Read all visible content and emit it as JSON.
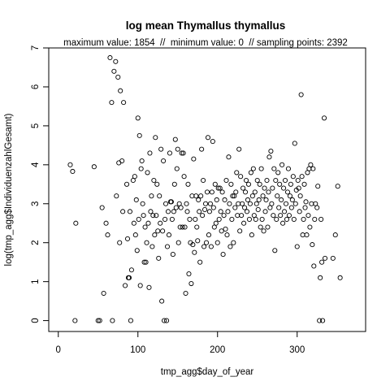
{
  "chart_data": {
    "type": "scatter",
    "title": "log mean Thymallus thymallus",
    "subtitle": "maximum value: 1854  //  minimum value: 0  // sampling points: 2392",
    "xlabel": "tmp_agg$day_of_year",
    "ylabel": "log(tmp_agg$IndividuenzahlGesamt)",
    "xlim": [
      -12,
      386
    ],
    "ylim": [
      -0.28,
      7.0
    ],
    "xticks": [
      0,
      100,
      200,
      300
    ],
    "yticks": [
      0,
      1,
      2,
      3,
      4,
      5,
      6,
      7
    ],
    "grid": false,
    "marker": "open-circle",
    "points": [
      [
        15,
        4.0
      ],
      [
        18,
        3.83
      ],
      [
        21,
        0.0
      ],
      [
        22,
        2.5
      ],
      [
        45,
        3.95
      ],
      [
        50,
        0.0
      ],
      [
        52,
        0.0
      ],
      [
        55,
        2.9
      ],
      [
        57,
        0.7
      ],
      [
        60,
        2.5
      ],
      [
        62,
        2.2
      ],
      [
        65,
        6.75
      ],
      [
        67,
        5.6
      ],
      [
        68,
        0.0
      ],
      [
        70,
        6.4
      ],
      [
        72,
        6.65
      ],
      [
        73,
        3.2
      ],
      [
        75,
        6.25
      ],
      [
        76,
        4.05
      ],
      [
        77,
        2.0
      ],
      [
        78,
        5.9
      ],
      [
        80,
        4.1
      ],
      [
        81,
        2.8
      ],
      [
        82,
        5.6
      ],
      [
        84,
        0.9
      ],
      [
        86,
        3.5
      ],
      [
        87,
        2.1
      ],
      [
        88,
        1.1
      ],
      [
        89,
        1.1
      ],
      [
        90,
        2.8
      ],
      [
        91,
        0.0
      ],
      [
        92,
        1.3
      ],
      [
        94,
        3.6
      ],
      [
        95,
        2.5
      ],
      [
        96,
        3.7
      ],
      [
        97,
        2.2
      ],
      [
        98,
        3.1
      ],
      [
        99,
        1.8
      ],
      [
        100,
        5.2
      ],
      [
        101,
        2.6
      ],
      [
        102,
        4.75
      ],
      [
        103,
        0.9
      ],
      [
        104,
        3.9
      ],
      [
        105,
        4.1
      ],
      [
        106,
        3.0
      ],
      [
        107,
        2.7
      ],
      [
        108,
        1.5
      ],
      [
        109,
        2.4
      ],
      [
        110,
        1.5
      ],
      [
        111,
        2.0
      ],
      [
        112,
        3.8
      ],
      [
        113,
        2.5
      ],
      [
        114,
        0.85
      ],
      [
        115,
        4.3
      ],
      [
        116,
        2.8
      ],
      [
        117,
        3.2
      ],
      [
        118,
        1.9
      ],
      [
        119,
        2.7
      ],
      [
        120,
        3.6
      ],
      [
        121,
        2.2
      ],
      [
        122,
        4.7
      ],
      [
        123,
        2.7
      ],
      [
        124,
        3.5
      ],
      [
        125,
        2.3
      ],
      [
        126,
        1.6
      ],
      [
        127,
        3.2
      ],
      [
        128,
        2.5
      ],
      [
        129,
        4.4
      ],
      [
        130,
        0.5
      ],
      [
        131,
        2.3
      ],
      [
        132,
        4.1
      ],
      [
        133,
        0.0
      ],
      [
        134,
        2.6
      ],
      [
        135,
        3.0
      ],
      [
        136,
        0.0
      ],
      [
        137,
        1.9
      ],
      [
        138,
        2.8
      ],
      [
        139,
        2.2
      ],
      [
        140,
        4.3
      ],
      [
        141,
        3.05
      ],
      [
        142,
        3.05
      ],
      [
        143,
        2.6
      ],
      [
        144,
        1.7
      ],
      [
        145,
        2.8
      ],
      [
        146,
        3.5
      ],
      [
        147,
        4.65
      ],
      [
        148,
        2.9
      ],
      [
        149,
        3.9
      ],
      [
        150,
        4.4
      ],
      [
        151,
        2.0
      ],
      [
        152,
        3.0
      ],
      [
        153,
        2.4
      ],
      [
        154,
        2.9
      ],
      [
        155,
        4.3
      ],
      [
        156,
        2.4
      ],
      [
        157,
        4.3
      ],
      [
        158,
        3.7
      ],
      [
        159,
        2.4
      ],
      [
        160,
        0.7
      ],
      [
        161,
        3.0
      ],
      [
        162,
        2.8
      ],
      [
        163,
        3.5
      ],
      [
        164,
        1.2
      ],
      [
        165,
        2.6
      ],
      [
        166,
        2.0
      ],
      [
        167,
        0.95
      ],
      [
        168,
        3.2
      ],
      [
        169,
        1.95
      ],
      [
        170,
        4.15
      ],
      [
        171,
        1.75
      ],
      [
        172,
        2.6
      ],
      [
        173,
        3.2
      ],
      [
        174,
        2.4
      ],
      [
        175,
        2.05
      ],
      [
        176,
        3.1
      ],
      [
        177,
        2.8
      ],
      [
        178,
        1.5
      ],
      [
        179,
        3.2
      ],
      [
        180,
        4.4
      ],
      [
        181,
        2.7
      ],
      [
        182,
        3.6
      ],
      [
        183,
        1.9
      ],
      [
        184,
        2.85
      ],
      [
        185,
        3.0
      ],
      [
        186,
        2.0
      ],
      [
        187,
        3.3
      ],
      [
        188,
        4.7
      ],
      [
        189,
        2.2
      ],
      [
        190,
        2.8
      ],
      [
        191,
        3.0
      ],
      [
        192,
        1.9
      ],
      [
        193,
        3.3
      ],
      [
        194,
        4.6
      ],
      [
        195,
        2.9
      ],
      [
        196,
        2.4
      ],
      [
        197,
        3.5
      ],
      [
        198,
        2.5
      ],
      [
        199,
        3.1
      ],
      [
        200,
        2.0
      ],
      [
        201,
        3.4
      ],
      [
        202,
        2.6
      ],
      [
        203,
        3.4
      ],
      [
        204,
        2.8
      ],
      [
        205,
        2.3
      ],
      [
        206,
        3.3
      ],
      [
        207,
        1.7
      ],
      [
        208,
        2.7
      ],
      [
        209,
        3.1
      ],
      [
        210,
        2.35
      ],
      [
        211,
        3.6
      ],
      [
        212,
        2.2
      ],
      [
        213,
        2.8
      ],
      [
        214,
        4.2
      ],
      [
        215,
        3.0
      ],
      [
        216,
        1.9
      ],
      [
        217,
        3.5
      ],
      [
        218,
        2.6
      ],
      [
        219,
        3.2
      ],
      [
        220,
        2.0
      ],
      [
        221,
        3.2
      ],
      [
        222,
        2.9
      ],
      [
        223,
        3.3
      ],
      [
        224,
        3.8
      ],
      [
        225,
        2.7
      ],
      [
        226,
        3.0
      ],
      [
        227,
        4.4
      ],
      [
        228,
        2.3
      ],
      [
        229,
        3.7
      ],
      [
        230,
        2.7
      ],
      [
        231,
        3.0
      ],
      [
        232,
        3.4
      ],
      [
        233,
        2.5
      ],
      [
        234,
        2.9
      ],
      [
        235,
        3.3
      ],
      [
        236,
        3.6
      ],
      [
        237,
        2.8
      ],
      [
        238,
        3.1
      ],
      [
        239,
        3.5
      ],
      [
        240,
        2.6
      ],
      [
        241,
        3.0
      ],
      [
        242,
        3.8
      ],
      [
        243,
        2.2
      ],
      [
        244,
        3.2
      ],
      [
        245,
        3.9
      ],
      [
        246,
        2.7
      ],
      [
        247,
        3.3
      ],
      [
        248,
        2.6
      ],
      [
        249,
        3.0
      ],
      [
        250,
        3.6
      ],
      [
        251,
        2.85
      ],
      [
        252,
        3.1
      ],
      [
        253,
        3.5
      ],
      [
        254,
        2.4
      ],
      [
        255,
        3.9
      ],
      [
        256,
        2.6
      ],
      [
        257,
        3.2
      ],
      [
        258,
        2.3
      ],
      [
        259,
        3.4
      ],
      [
        260,
        2.8
      ],
      [
        261,
        3.1
      ],
      [
        262,
        3.6
      ],
      [
        263,
        2.4
      ],
      [
        264,
        3.3
      ],
      [
        265,
        4.2
      ],
      [
        266,
        2.9
      ],
      [
        267,
        4.35
      ],
      [
        268,
        3.0
      ],
      [
        269,
        3.4
      ],
      [
        270,
        2.7
      ],
      [
        271,
        3.9
      ],
      [
        272,
        1.8
      ],
      [
        273,
        3.6
      ],
      [
        274,
        2.6
      ],
      [
        275,
        3.2
      ],
      [
        276,
        3.8
      ],
      [
        277,
        2.9
      ],
      [
        278,
        3.5
      ],
      [
        279,
        2.7
      ],
      [
        280,
        3.1
      ],
      [
        281,
        4.0
      ],
      [
        282,
        2.5
      ],
      [
        283,
        3.4
      ],
      [
        284,
        2.8
      ],
      [
        285,
        3.6
      ],
      [
        286,
        3.0
      ],
      [
        287,
        2.6
      ],
      [
        288,
        3.3
      ],
      [
        289,
        3.9
      ],
      [
        290,
        2.7
      ],
      [
        291,
        3.2
      ],
      [
        292,
        3.5
      ],
      [
        293,
        2.9
      ],
      [
        294,
        3.1
      ],
      [
        295,
        3.7
      ],
      [
        296,
        2.6
      ],
      [
        297,
        4.55
      ],
      [
        298,
        3.0
      ],
      [
        299,
        3.35
      ],
      [
        300,
        1.9
      ],
      [
        301,
        3.6
      ],
      [
        302,
        3.4
      ],
      [
        303,
        2.8
      ],
      [
        304,
        3.2
      ],
      [
        305,
        5.8
      ],
      [
        306,
        3.7
      ],
      [
        307,
        2.2
      ],
      [
        308,
        2.6
      ],
      [
        309,
        3.5
      ],
      [
        310,
        2.9
      ],
      [
        311,
        3.05
      ],
      [
        312,
        2.2
      ],
      [
        313,
        3.8
      ],
      [
        314,
        2.7
      ],
      [
        315,
        3.9
      ],
      [
        316,
        2.4
      ],
      [
        317,
        4.0
      ],
      [
        318,
        3.0
      ],
      [
        319,
        1.95
      ],
      [
        320,
        3.9
      ],
      [
        321,
        1.4
      ],
      [
        322,
        2.6
      ],
      [
        323,
        3.0
      ],
      [
        325,
        2.9
      ],
      [
        326,
        3.45
      ],
      [
        328,
        0.0
      ],
      [
        329,
        1.1
      ],
      [
        330,
        2.6
      ],
      [
        331,
        1.5
      ],
      [
        332,
        0.0
      ],
      [
        334,
        5.2
      ],
      [
        335,
        1.6
      ],
      [
        345,
        1.6
      ],
      [
        348,
        2.2
      ],
      [
        351,
        3.45
      ],
      [
        354,
        1.1
      ]
    ]
  }
}
